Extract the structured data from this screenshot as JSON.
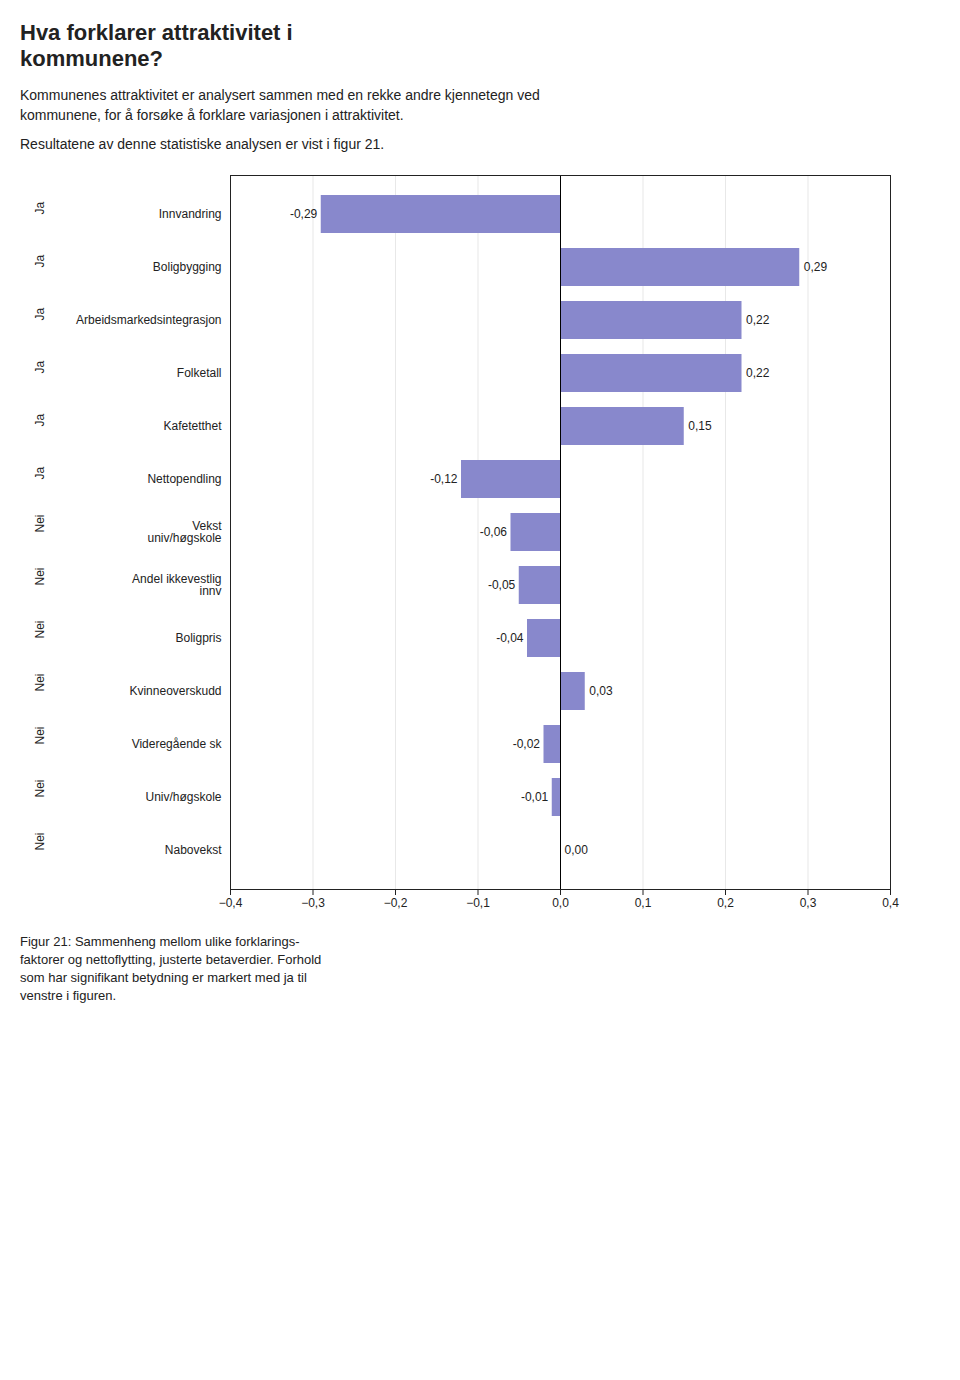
{
  "chart_data": {
    "type": "bar",
    "orientation": "horizontal",
    "title": "Hva forklarer attraktivitet i\nkommunene?",
    "annotations": [
      "Kommunenes attraktivitet er analysert sammen med en rekke andre kjennetegn ved kommunene, for å forsøke å forklare variasjonen i attraktivitet.",
      "Resultatene av denne statistiske analysen er vist i figur 21."
    ],
    "caption": "Figur 21: Sammenheng mellom ulike forklarings-\nfaktorer og nettoflytting, justerte betaverdier. Forhold\nsom har signifikant betydning er markert med ja til\nvenstre i figuren.",
    "categories": [
      "Innvandring",
      "Boligbygging",
      "Arbeidsmarkedsintegrasjon",
      "Folketall",
      "Kafetetthet",
      "Nettopendling",
      "Vekst\nuniv/høgskole",
      "Andel ikkevestlig\ninnv",
      "Boligpris",
      "Kvinneoverskudd",
      "Videregående sk",
      "Univ/høgskole",
      "Nabovekst"
    ],
    "signifikant": [
      "Ja",
      "Ja",
      "Ja",
      "Ja",
      "Ja",
      "Ja",
      "Nei",
      "Nei",
      "Nei",
      "Nei",
      "Nei",
      "Nei",
      "Nei"
    ],
    "values": [
      -0.29,
      0.29,
      0.22,
      0.22,
      0.15,
      -0.12,
      -0.06,
      -0.05,
      -0.04,
      0.03,
      -0.02,
      -0.01,
      0.0
    ],
    "value_labels": [
      "-0,29",
      "0,29",
      "0,22",
      "0,22",
      "0,15",
      "-0,12",
      "-0,06",
      "-0,05",
      "-0,04",
      "0,03",
      "-0,02",
      "-0,01",
      "0,00"
    ],
    "data_labels": true,
    "color": "#8888cc",
    "xlim": [
      -0.4,
      0.4
    ],
    "xticks": [
      {
        "value": -0.4,
        "label": "−0,4"
      },
      {
        "value": -0.3,
        "label": "−0,3"
      },
      {
        "value": -0.2,
        "label": "−0,2"
      },
      {
        "value": -0.1,
        "label": "−0,1"
      },
      {
        "value": 0.0,
        "label": "0,0"
      },
      {
        "value": 0.1,
        "label": "0,1"
      },
      {
        "value": 0.2,
        "label": "0,2"
      },
      {
        "value": 0.3,
        "label": "0,3"
      },
      {
        "value": 0.4,
        "label": "0,4"
      }
    ],
    "grid": true
  }
}
